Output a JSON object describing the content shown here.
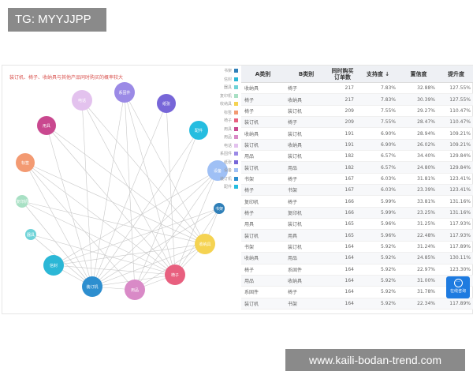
{
  "watermarks": {
    "top_left": "TG: MYYJJPP",
    "bottom_right": "www.kaili-bodan-trend.com"
  },
  "graph": {
    "title": "装订机、椅子、收纳具与其他产品同时购买的概率较大",
    "legend": [
      {
        "label": "书架",
        "color": "#2f7fb8"
      },
      {
        "label": "信封",
        "color": "#2bb7d6"
      },
      {
        "label": "器具",
        "color": "#6fd3d8"
      },
      {
        "label": "复印机",
        "color": "#a8e0c4"
      },
      {
        "label": "收纳具",
        "color": "#f5d352"
      },
      {
        "label": "标签",
        "color": "#f39a72"
      },
      {
        "label": "椅子",
        "color": "#e8607f"
      },
      {
        "label": "用具",
        "color": "#c9488f"
      },
      {
        "label": "用品",
        "color": "#d98ac7"
      },
      {
        "label": "电话",
        "color": "#e3c2ee"
      },
      {
        "label": "系固件",
        "color": "#9b8ae6"
      },
      {
        "label": "纸张",
        "color": "#7766d8"
      },
      {
        "label": "设备",
        "color": "#9fc0f5"
      },
      {
        "label": "装订机",
        "color": "#2d8ecf"
      },
      {
        "label": "配件",
        "color": "#25bde0"
      }
    ],
    "nodes": [
      {
        "label": "电话",
        "color": "#e3c2ee"
      },
      {
        "label": "系固件",
        "color": "#9b8ae6"
      },
      {
        "label": "纸张",
        "color": "#7766d8"
      },
      {
        "label": "用具",
        "color": "#c9488f"
      },
      {
        "label": "配件",
        "color": "#25bde0"
      },
      {
        "label": "标签",
        "color": "#f39a72"
      },
      {
        "label": "设备",
        "color": "#9fc0f5"
      },
      {
        "label": "复印机",
        "color": "#a8e0c4"
      },
      {
        "label": "书架",
        "color": "#2f7fb8"
      },
      {
        "label": "器具",
        "color": "#6fd3d8"
      },
      {
        "label": "收纳具",
        "color": "#f5d352"
      },
      {
        "label": "信封",
        "color": "#2bb7d6"
      },
      {
        "label": "椅子",
        "color": "#e8607f"
      },
      {
        "label": "装订机",
        "color": "#2d8ecf"
      },
      {
        "label": "用品",
        "color": "#d98ac7"
      }
    ],
    "links": [
      [
        "装订机",
        "电话"
      ],
      [
        "装订机",
        "系固件"
      ],
      [
        "装订机",
        "纸张"
      ],
      [
        "装订机",
        "用具"
      ],
      [
        "装订机",
        "配件"
      ],
      [
        "装订机",
        "标签"
      ],
      [
        "装订机",
        "设备"
      ],
      [
        "装订机",
        "复印机"
      ],
      [
        "装订机",
        "书架"
      ],
      [
        "装订机",
        "器具"
      ],
      [
        "装订机",
        "收纳具"
      ],
      [
        "装订机",
        "信封"
      ],
      [
        "装订机",
        "椅子"
      ],
      [
        "装订机",
        "用品"
      ],
      [
        "椅子",
        "电话"
      ],
      [
        "椅子",
        "系固件"
      ],
      [
        "椅子",
        "纸张"
      ],
      [
        "椅子",
        "用具"
      ],
      [
        "椅子",
        "标签"
      ],
      [
        "椅子",
        "设备"
      ],
      [
        "椅子",
        "复印机"
      ],
      [
        "椅子",
        "书架"
      ],
      [
        "椅子",
        "器具"
      ],
      [
        "椅子",
        "收纳具"
      ],
      [
        "椅子",
        "信封"
      ],
      [
        "椅子",
        "用品"
      ],
      [
        "收纳具",
        "电话"
      ],
      [
        "收纳具",
        "系固件"
      ],
      [
        "收纳具",
        "用具"
      ],
      [
        "收纳具",
        "标签"
      ],
      [
        "收纳具",
        "复印机"
      ],
      [
        "收纳具",
        "书架"
      ],
      [
        "收纳具",
        "信封"
      ],
      [
        "收纳具",
        "用品"
      ],
      [
        "用品",
        "系固件"
      ],
      [
        "用品",
        "配件"
      ],
      [
        "用品",
        "标签"
      ],
      [
        "用品",
        "设备"
      ],
      [
        "信封",
        "书架"
      ],
      [
        "信封",
        "设备"
      ]
    ]
  },
  "table": {
    "headers": [
      "A类别",
      "B类别",
      "同时购买订单数",
      "支持度 ↓",
      "置信度",
      "提升度"
    ],
    "rows": [
      [
        "收纳具",
        "椅子",
        "217",
        "7.83%",
        "32.88%",
        "127.55%"
      ],
      [
        "椅子",
        "收纳具",
        "217",
        "7.83%",
        "30.39%",
        "127.55%"
      ],
      [
        "椅子",
        "装订机",
        "209",
        "7.55%",
        "29.27%",
        "110.47%"
      ],
      [
        "装订机",
        "椅子",
        "209",
        "7.55%",
        "28.47%",
        "110.47%"
      ],
      [
        "收纳具",
        "装订机",
        "191",
        "6.90%",
        "28.94%",
        "109.21%"
      ],
      [
        "装订机",
        "收纳具",
        "191",
        "6.90%",
        "26.02%",
        "109.21%"
      ],
      [
        "用品",
        "装订机",
        "182",
        "6.57%",
        "34.40%",
        "129.84%"
      ],
      [
        "装订机",
        "用品",
        "182",
        "6.57%",
        "24.80%",
        "129.84%"
      ],
      [
        "书架",
        "椅子",
        "167",
        "6.03%",
        "31.81%",
        "123.41%"
      ],
      [
        "椅子",
        "书架",
        "167",
        "6.03%",
        "23.39%",
        "123.41%"
      ],
      [
        "复印机",
        "椅子",
        "166",
        "5.99%",
        "33.81%",
        "131.16%"
      ],
      [
        "椅子",
        "复印机",
        "166",
        "5.99%",
        "23.25%",
        "131.16%"
      ],
      [
        "用具",
        "装订机",
        "165",
        "5.96%",
        "31.25%",
        "117.93%"
      ],
      [
        "装订机",
        "用具",
        "165",
        "5.96%",
        "22.48%",
        "117.93%"
      ],
      [
        "书架",
        "装订机",
        "164",
        "5.92%",
        "31.24%",
        "117.89%"
      ],
      [
        "收纳具",
        "用品",
        "164",
        "5.92%",
        "24.85%",
        "130.11%"
      ],
      [
        "椅子",
        "系固件",
        "164",
        "5.92%",
        "22.97%",
        "123.30%"
      ],
      [
        "用品",
        "收纳具",
        "164",
        "5.92%",
        "31.00%",
        ""
      ],
      [
        "系固件",
        "椅子",
        "164",
        "5.92%",
        "31.78%",
        ""
      ],
      [
        "装订机",
        "书架",
        "164",
        "5.92%",
        "22.34%",
        "117.89%"
      ]
    ]
  },
  "chat": {
    "label": "在线咨询",
    "icon": "chat-bubble-icon"
  }
}
